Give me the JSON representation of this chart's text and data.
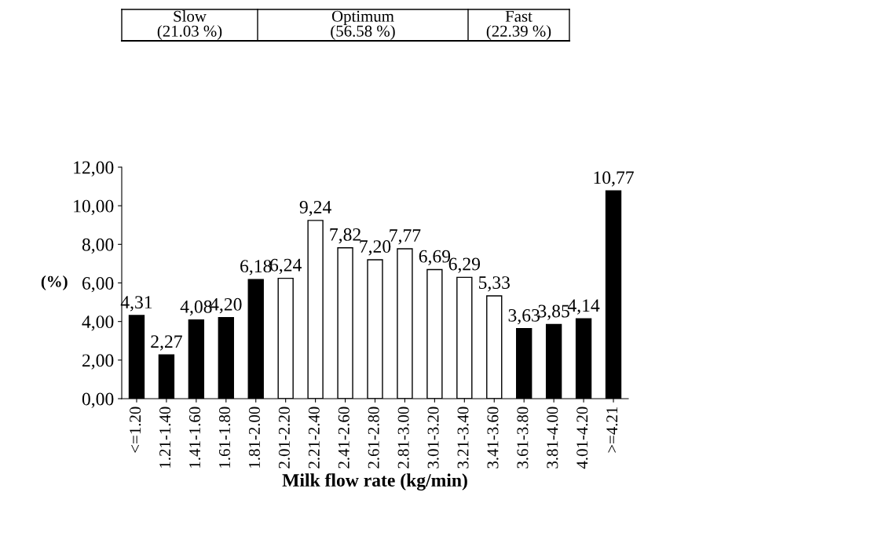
{
  "chart_data": {
    "type": "bar",
    "xlabel": "Milk flow rate (kg/min)",
    "ylabel": "(%)",
    "categories": [
      "<=1.20",
      "1.21-1.40",
      "1.41-1.60",
      "1.61-1.80",
      "1.81-2.00",
      "2.01-2.20",
      "2.21-2.40",
      "2.41-2.60",
      "2.61-2.80",
      "2.81-3.00",
      "3.01-3.20",
      "3.21-3.40",
      "3.41-3.60",
      "3.61-3.80",
      "3.81-4.00",
      "4.01-4.20",
      ">=4.21"
    ],
    "values": [
      4.31,
      2.27,
      4.08,
      4.2,
      6.18,
      6.24,
      9.24,
      7.82,
      7.2,
      7.77,
      6.69,
      6.29,
      5.33,
      3.63,
      3.85,
      4.14,
      10.77
    ],
    "value_labels": [
      "4,31",
      "2,27",
      "4,08",
      "4,20",
      "6,18",
      "6,24",
      "9,24",
      "7,82",
      "7,20",
      "7,77",
      "6,69",
      "6,29",
      "5,33",
      "3,63",
      "3,85",
      "4,14",
      "10,77"
    ],
    "colors": [
      "#000000",
      "#000000",
      "#000000",
      "#000000",
      "#000000",
      "#ffffff",
      "#ffffff",
      "#ffffff",
      "#ffffff",
      "#ffffff",
      "#ffffff",
      "#ffffff",
      "#ffffff",
      "#000000",
      "#000000",
      "#000000",
      "#000000"
    ],
    "ylim": [
      0,
      12
    ],
    "yticks": [
      {
        "value": 0,
        "label": "0,00"
      },
      {
        "value": 2,
        "label": "2,00"
      },
      {
        "value": 4,
        "label": "4,00"
      },
      {
        "value": 6,
        "label": "6,00"
      },
      {
        "value": 8,
        "label": "8,00"
      },
      {
        "value": 10,
        "label": "10,00"
      },
      {
        "value": 12,
        "label": "12,00"
      }
    ],
    "grid": false,
    "legend": false,
    "annotations": [
      "Slow\n(21.03 %)",
      "Optimum\n(56.58 %)",
      "Fast\n(22.39 %)"
    ]
  }
}
